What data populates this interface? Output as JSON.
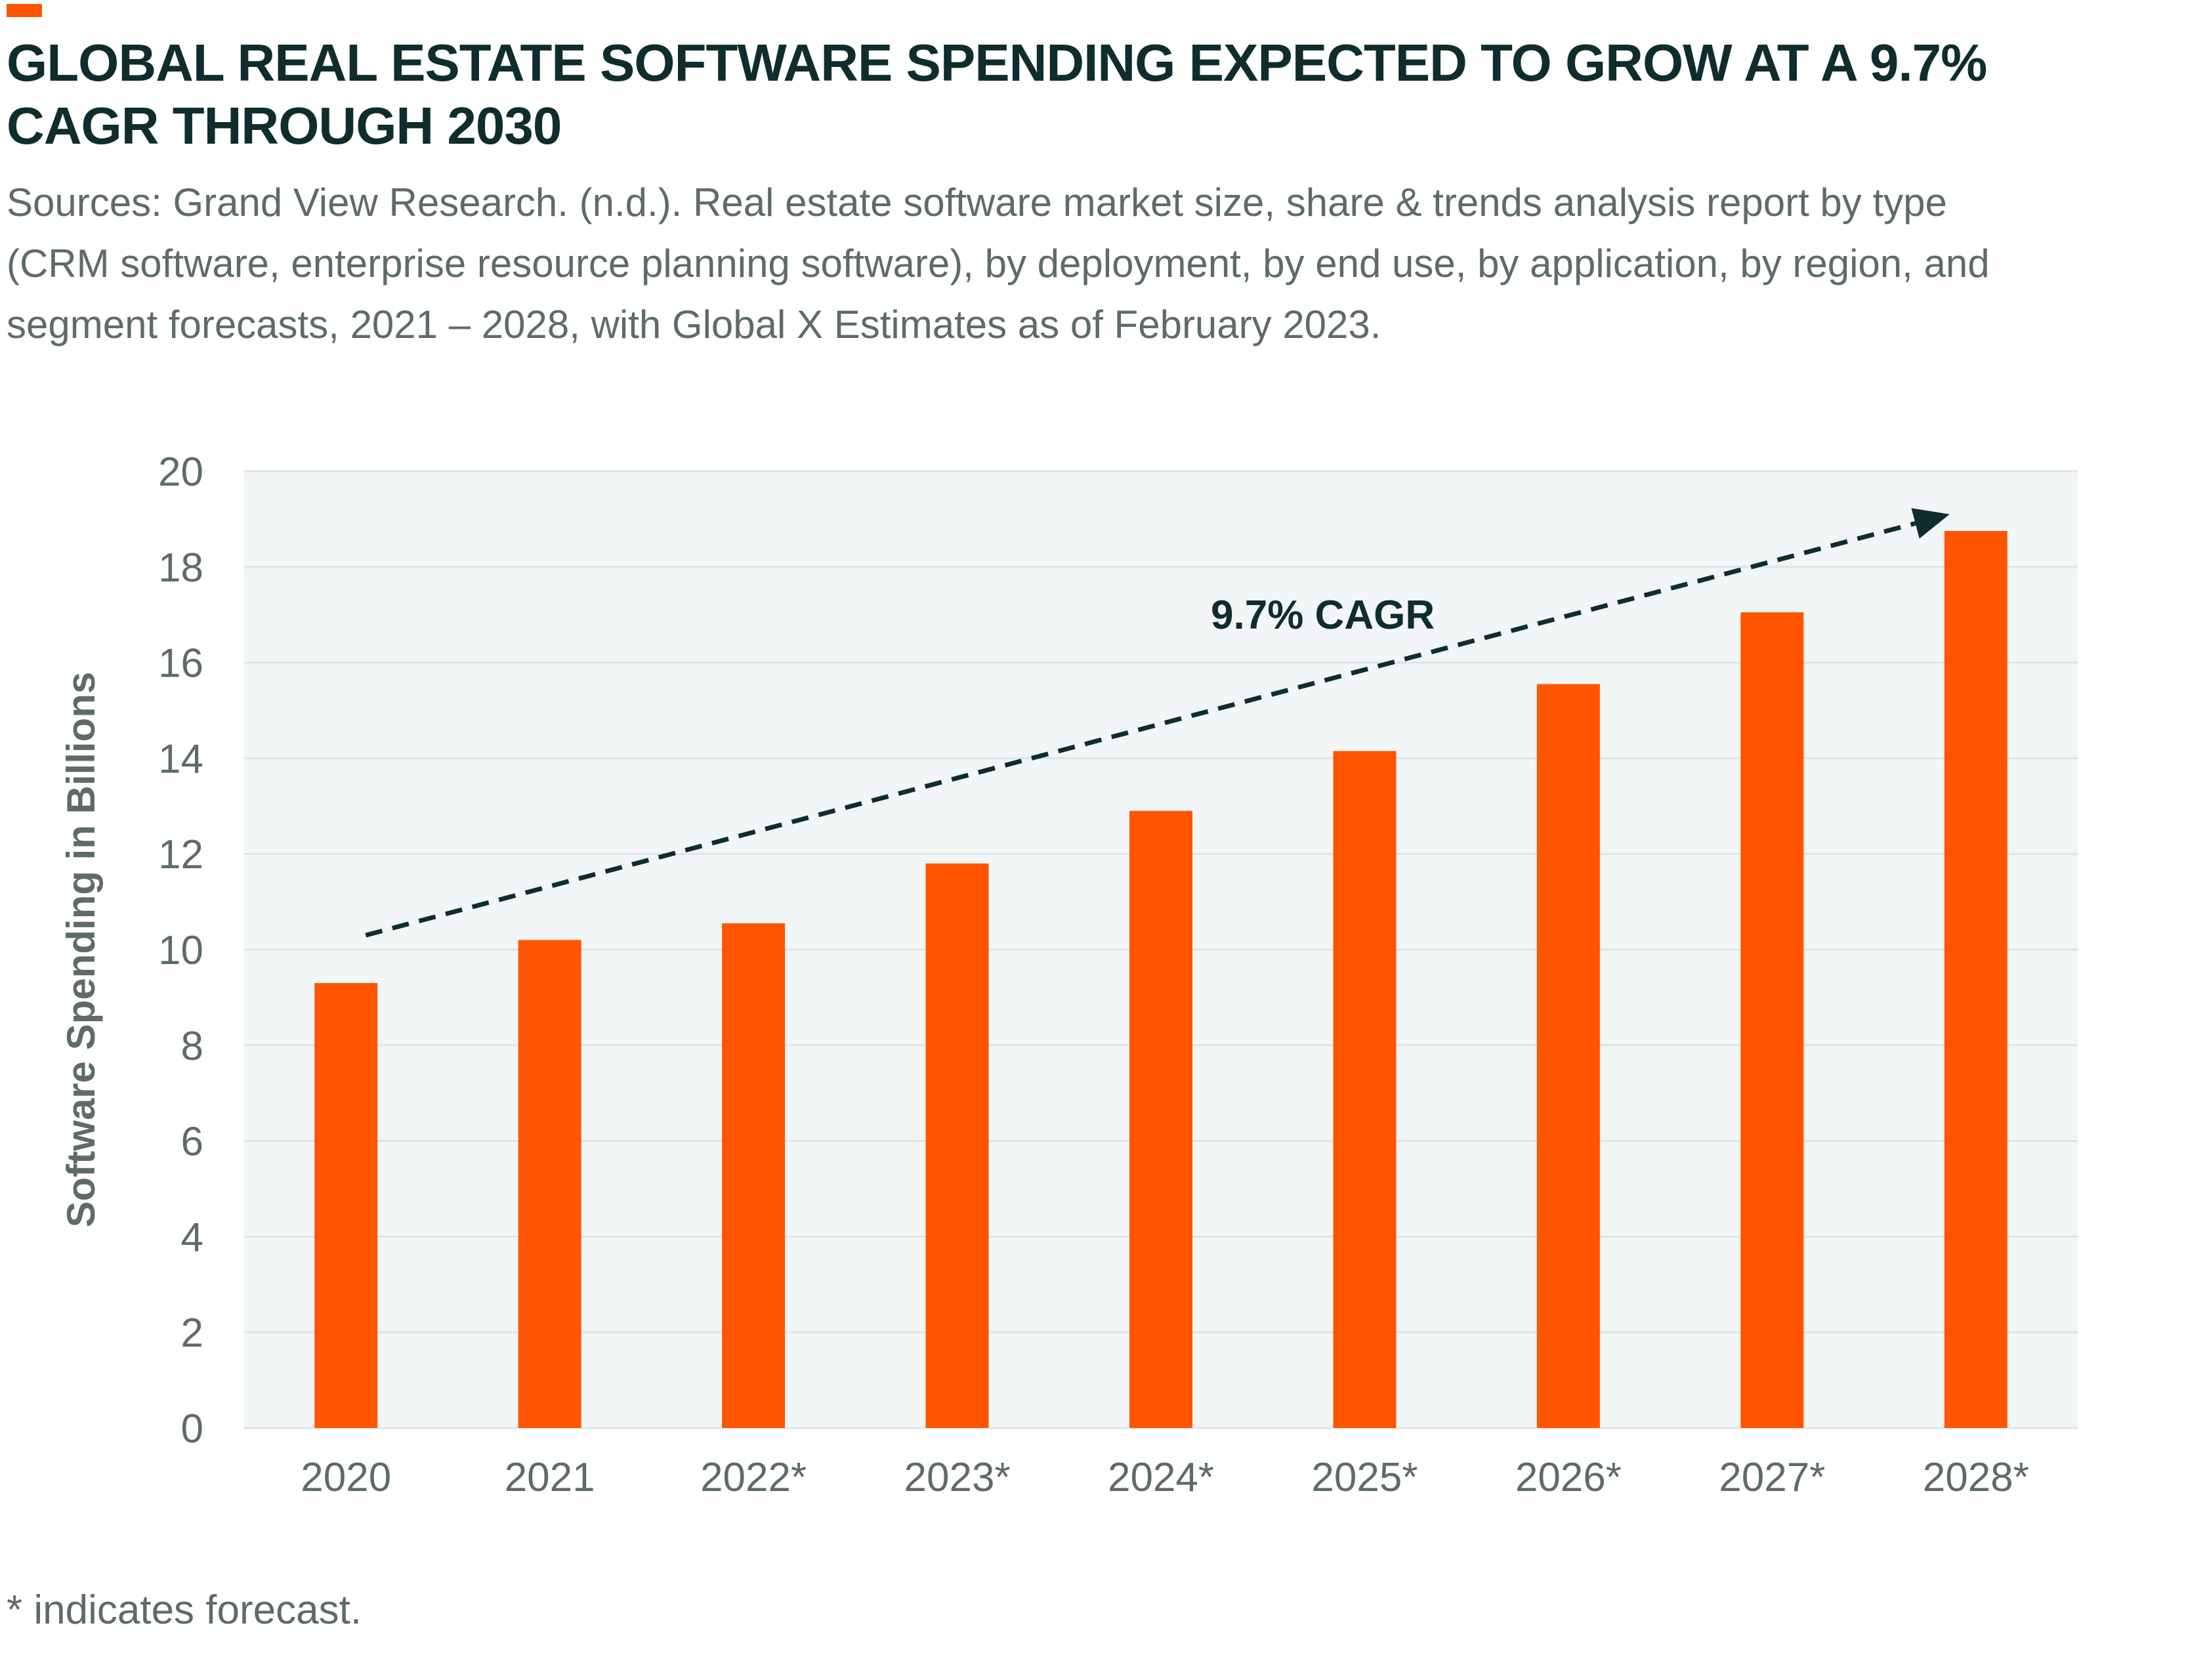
{
  "header": {
    "title": "GLOBAL REAL ESTATE SOFTWARE SPENDING EXPECTED TO GROW AT A 9.7% CAGR THROUGH 2030",
    "source": "Sources: Grand View Research. (n.d.). Real estate software market size, share & trends analysis report by type (CRM software, enterprise resource planning software), by deployment, by end use, by application, by region, and segment forecasts, 2021 – 2028, with Global X Estimates as of February 2023."
  },
  "footnote": "* indicates forecast.",
  "colors": {
    "accent": "#ff5500",
    "title": "#0f2d2d",
    "bar": "#ff5500",
    "plot_background": "#f3f6f6",
    "grid": "#dfe4e4",
    "axis_text": "#5f6b6b",
    "annotation": "#0f2d2d"
  },
  "chart_data": {
    "type": "bar",
    "categories": [
      "2020",
      "2021",
      "2022*",
      "2023*",
      "2024*",
      "2025*",
      "2026*",
      "2027*",
      "2028*"
    ],
    "values": [
      9.3,
      10.2,
      10.55,
      11.8,
      12.9,
      14.15,
      15.55,
      17.05,
      18.75
    ],
    "ylabel": "Software Spending in Billions",
    "xlabel": "",
    "ylim": [
      0,
      20
    ],
    "yticks": [
      "0",
      "2",
      "4",
      "6",
      "8",
      "10",
      "12",
      "14",
      "16",
      "18",
      "20"
    ],
    "grid": true,
    "annotation": {
      "label": "9.7% CAGR",
      "style": "dashed-arrow",
      "from": {
        "category": "2020",
        "value": 10.3
      },
      "to": {
        "category": "2028*",
        "value": 19.1
      }
    }
  }
}
